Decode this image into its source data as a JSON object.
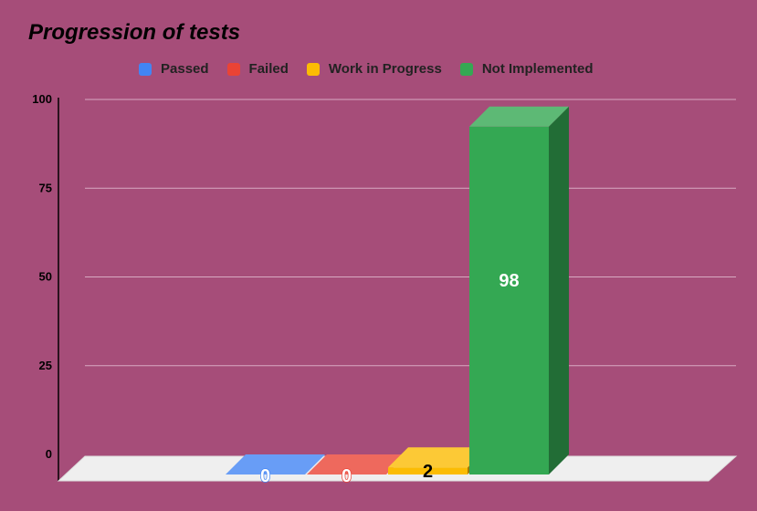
{
  "chart_data": {
    "type": "bar",
    "title": "Progression of tests",
    "categories": [
      "Passed",
      "Failed",
      "Work in Progress",
      "Not Implemented"
    ],
    "values": [
      0,
      0,
      2,
      98
    ],
    "data_labels": [
      "0",
      "0",
      "2",
      "98"
    ],
    "colors": [
      "#4285f4",
      "#ea4335",
      "#fbbc04",
      "#34a853"
    ],
    "ylim": [
      0,
      100
    ],
    "y_ticks": [
      0,
      25,
      50,
      75,
      100
    ],
    "y_tick_labels": [
      "0",
      "25",
      "50",
      "75",
      "100"
    ],
    "legend_position": "top",
    "grid": true,
    "style": "3d"
  }
}
